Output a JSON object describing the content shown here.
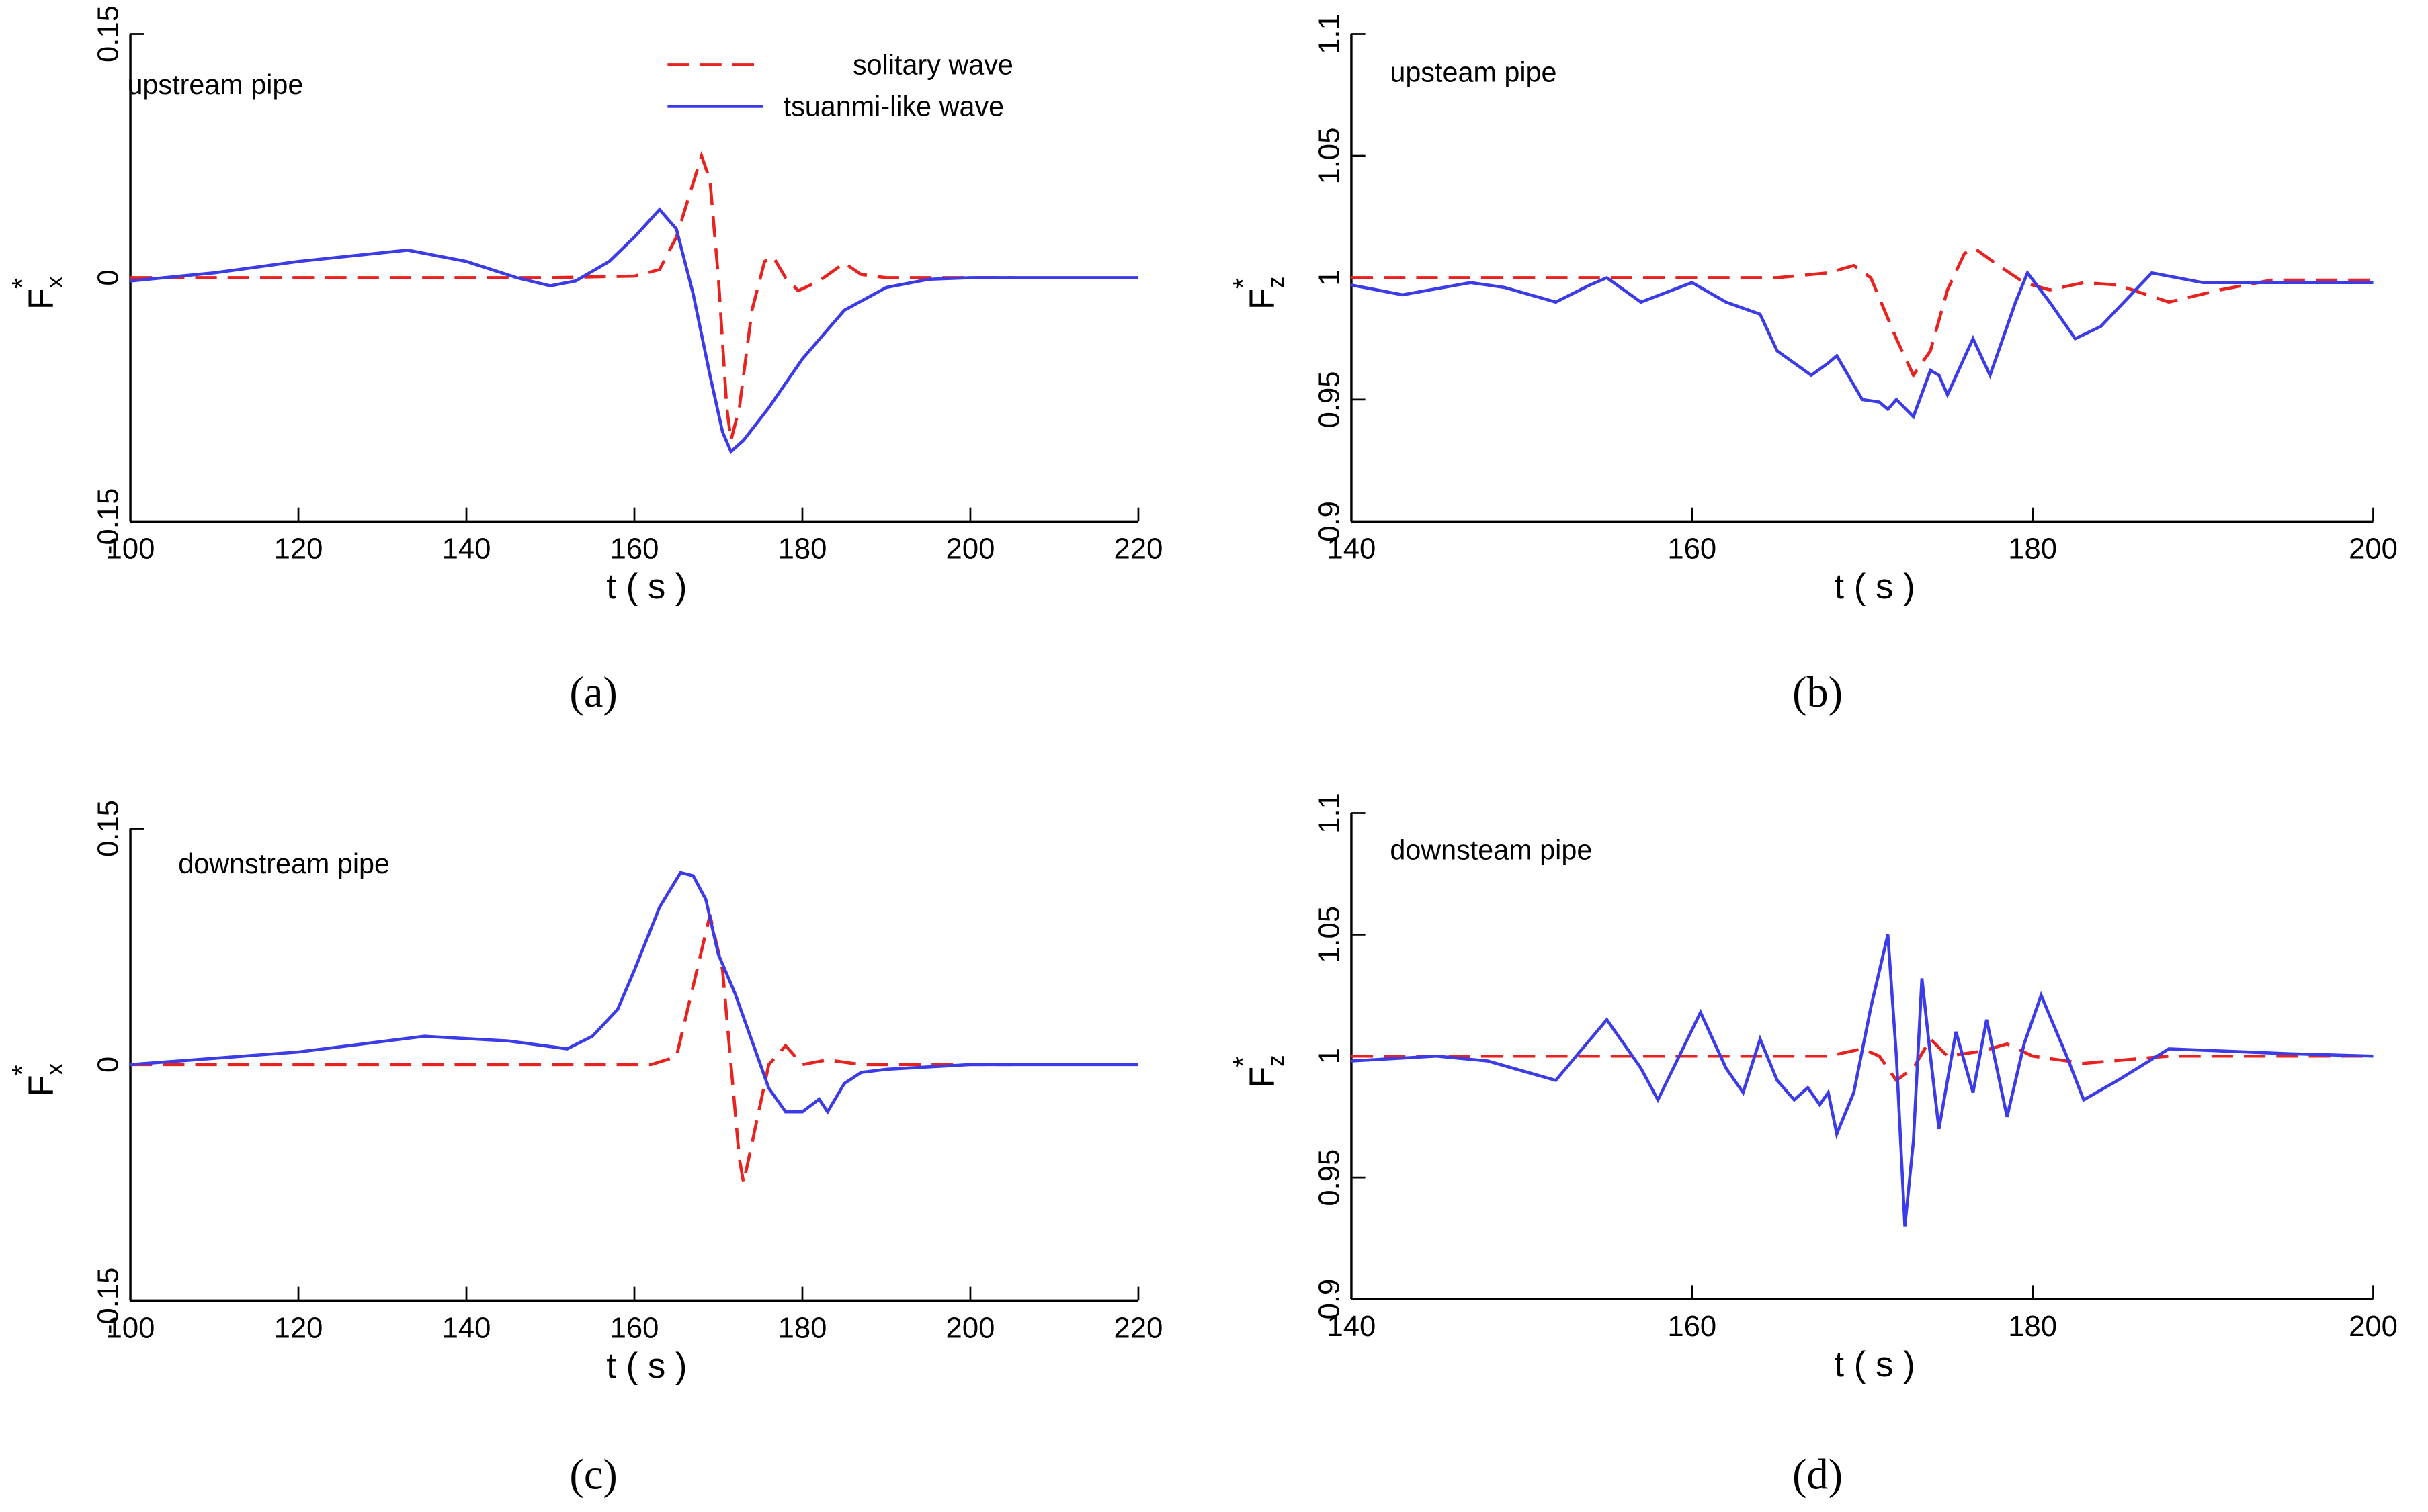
{
  "chart_data": [
    {
      "type": "line",
      "panel_label": "(a)",
      "annotation": "upstream pipe",
      "xlabel": "t ( s )",
      "ylabel": {
        "base": "F",
        "sub": "x",
        "sup": "*"
      },
      "xlim": [
        100,
        220
      ],
      "xticks": [
        100,
        120,
        140,
        160,
        180,
        200,
        220
      ],
      "ylim": [
        -0.15,
        0.15
      ],
      "yticks": [
        -0.15,
        0,
        0.15
      ],
      "legend": "upper center",
      "series": [
        {
          "name": "solitary wave",
          "color": "#e8221e",
          "line_style": "dashed",
          "x": [
            100,
            150,
            160,
            163,
            165,
            166.5,
            168,
            169,
            170,
            171,
            171.5,
            172.5,
            174,
            175.5,
            176.5,
            178,
            179.5,
            182,
            185,
            187,
            190,
            205
          ],
          "values": [
            0,
            0,
            0.001,
            0.005,
            0.025,
            0.05,
            0.075,
            0.06,
            0,
            -0.08,
            -0.1,
            -0.08,
            -0.02,
            0.01,
            0.013,
            0,
            -0.008,
            -0.002,
            0.009,
            0.002,
            0,
            0
          ]
        },
        {
          "name": "tsuanmi-like wave",
          "color": "#3b3be8",
          "line_style": "solid",
          "x": [
            100,
            110,
            120,
            133,
            140,
            146,
            150,
            153,
            157,
            160,
            163,
            165,
            167,
            169,
            170.5,
            171.5,
            173,
            176,
            180,
            185,
            190,
            195,
            200,
            220
          ],
          "values": [
            -0.002,
            0.003,
            0.01,
            0.017,
            0.01,
            0,
            -0.005,
            -0.002,
            0.01,
            0.025,
            0.042,
            0.03,
            -0.01,
            -0.06,
            -0.095,
            -0.107,
            -0.1,
            -0.08,
            -0.05,
            -0.02,
            -0.006,
            -0.001,
            0,
            0
          ]
        }
      ]
    },
    {
      "type": "line",
      "panel_label": "(b)",
      "annotation": "upsteam pipe",
      "xlabel": "t ( s )",
      "ylabel": {
        "base": "F",
        "sub": "z",
        "sup": "*"
      },
      "xlim": [
        140,
        200
      ],
      "xticks": [
        140,
        160,
        180,
        200
      ],
      "ylim": [
        0.9,
        1.1
      ],
      "yticks": [
        0.9,
        0.95,
        1,
        1.05,
        1.1
      ],
      "series": [
        {
          "color": "#e8221e",
          "line_style": "dashed",
          "x": [
            140,
            165,
            168,
            169.5,
            170.5,
            172,
            173,
            174,
            175,
            176,
            176.6,
            178,
            179.5,
            181,
            183,
            185,
            188,
            191,
            194,
            200
          ],
          "values": [
            1,
            1,
            1.002,
            1.005,
            1,
            0.975,
            0.96,
            0.97,
            0.995,
            1.01,
            1.012,
            1.005,
            0.998,
            0.995,
            0.998,
            0.997,
            0.99,
            0.995,
            0.999,
            0.999
          ]
        },
        {
          "color": "#3b3be8",
          "line_style": "solid",
          "x": [
            140,
            143,
            147,
            149,
            152,
            154,
            155,
            157,
            160,
            162,
            164,
            165,
            167,
            168,
            168.5,
            170,
            171,
            171.5,
            172,
            173,
            174,
            174.5,
            175,
            176.5,
            177.5,
            179,
            179.7,
            181,
            182.5,
            184,
            187,
            190,
            194,
            200
          ],
          "values": [
            0.997,
            0.993,
            0.998,
            0.996,
            0.99,
            0.997,
            1,
            0.99,
            0.998,
            0.99,
            0.985,
            0.97,
            0.96,
            0.965,
            0.968,
            0.95,
            0.949,
            0.946,
            0.95,
            0.943,
            0.962,
            0.96,
            0.952,
            0.975,
            0.96,
            0.99,
            1.002,
            0.99,
            0.975,
            0.98,
            1.002,
            0.998,
            0.998,
            0.998
          ]
        }
      ]
    },
    {
      "type": "line",
      "panel_label": "(c)",
      "annotation": "downstream pipe",
      "xlabel": "t ( s )",
      "ylabel": {
        "base": "F",
        "sub": "x",
        "sup": "*"
      },
      "xlim": [
        100,
        220
      ],
      "xticks": [
        100,
        120,
        140,
        160,
        180,
        200,
        220
      ],
      "ylim": [
        -0.15,
        0.15
      ],
      "yticks": [
        -0.15,
        0,
        0.15
      ],
      "series": [
        {
          "color": "#e8221e",
          "line_style": "dashed",
          "x": [
            100,
            162,
            165,
            167,
            169,
            170.5,
            171.5,
            172.5,
            173,
            174,
            176,
            178,
            180,
            183,
            187,
            205
          ],
          "values": [
            0,
            0,
            0.005,
            0.05,
            0.095,
            0.06,
            0,
            -0.06,
            -0.075,
            -0.05,
            0,
            0.012,
            0,
            0.003,
            0,
            0
          ]
        },
        {
          "color": "#3b3be8",
          "line_style": "solid",
          "x": [
            100,
            120,
            135,
            145,
            152,
            155,
            158,
            160,
            163,
            165.5,
            167,
            168.5,
            170,
            172,
            173,
            175,
            176,
            178,
            180,
            182,
            183,
            185,
            187,
            190,
            200,
            220
          ],
          "values": [
            0,
            0.008,
            0.018,
            0.015,
            0.01,
            0.018,
            0.035,
            0.06,
            0.1,
            0.122,
            0.12,
            0.105,
            0.07,
            0.045,
            0.03,
            0,
            -0.015,
            -0.03,
            -0.03,
            -0.022,
            -0.03,
            -0.012,
            -0.005,
            -0.003,
            0,
            0
          ]
        }
      ]
    },
    {
      "type": "line",
      "panel_label": "(d)",
      "annotation": "downsteam pipe",
      "xlabel": "t ( s )",
      "ylabel": {
        "base": "F",
        "sub": "z",
        "sup": "*"
      },
      "xlim": [
        140,
        200
      ],
      "xticks": [
        140,
        160,
        180,
        200
      ],
      "ylim": [
        0.9,
        1.1
      ],
      "yticks": [
        0.9,
        0.95,
        1,
        1.05,
        1.1
      ],
      "series": [
        {
          "color": "#e8221e",
          "line_style": "dashed",
          "x": [
            140,
            168,
            170,
            171,
            172,
            173,
            174,
            175,
            177,
            178.5,
            180,
            183,
            188,
            200
          ],
          "values": [
            1,
            1,
            1.003,
            1,
            0.99,
            0.995,
            1.007,
            1,
            1.002,
            1.005,
            1,
            0.997,
            1,
            1
          ]
        },
        {
          "color": "#3b3be8",
          "line_style": "solid",
          "x": [
            140,
            145,
            148,
            152,
            155,
            157,
            158,
            160.5,
            162,
            163,
            164,
            165,
            166,
            166.8,
            167.5,
            168,
            168.5,
            169.5,
            170.5,
            171.5,
            172,
            172.5,
            173,
            173.5,
            174,
            174.5,
            175.5,
            176.5,
            177.3,
            178.5,
            179.5,
            180.5,
            182,
            183,
            185,
            188,
            195,
            200
          ],
          "values": [
            0.998,
            1,
            0.998,
            0.99,
            1.015,
            0.995,
            0.982,
            1.018,
            0.995,
            0.985,
            1.007,
            0.99,
            0.982,
            0.987,
            0.98,
            0.985,
            0.968,
            0.985,
            1.02,
            1.05,
            1,
            0.93,
            0.965,
            1.032,
            1,
            0.97,
            1.01,
            0.985,
            1.015,
            0.975,
            1.005,
            1.025,
            1,
            0.982,
            0.99,
            1.003,
            1.001,
            1
          ]
        }
      ]
    }
  ]
}
